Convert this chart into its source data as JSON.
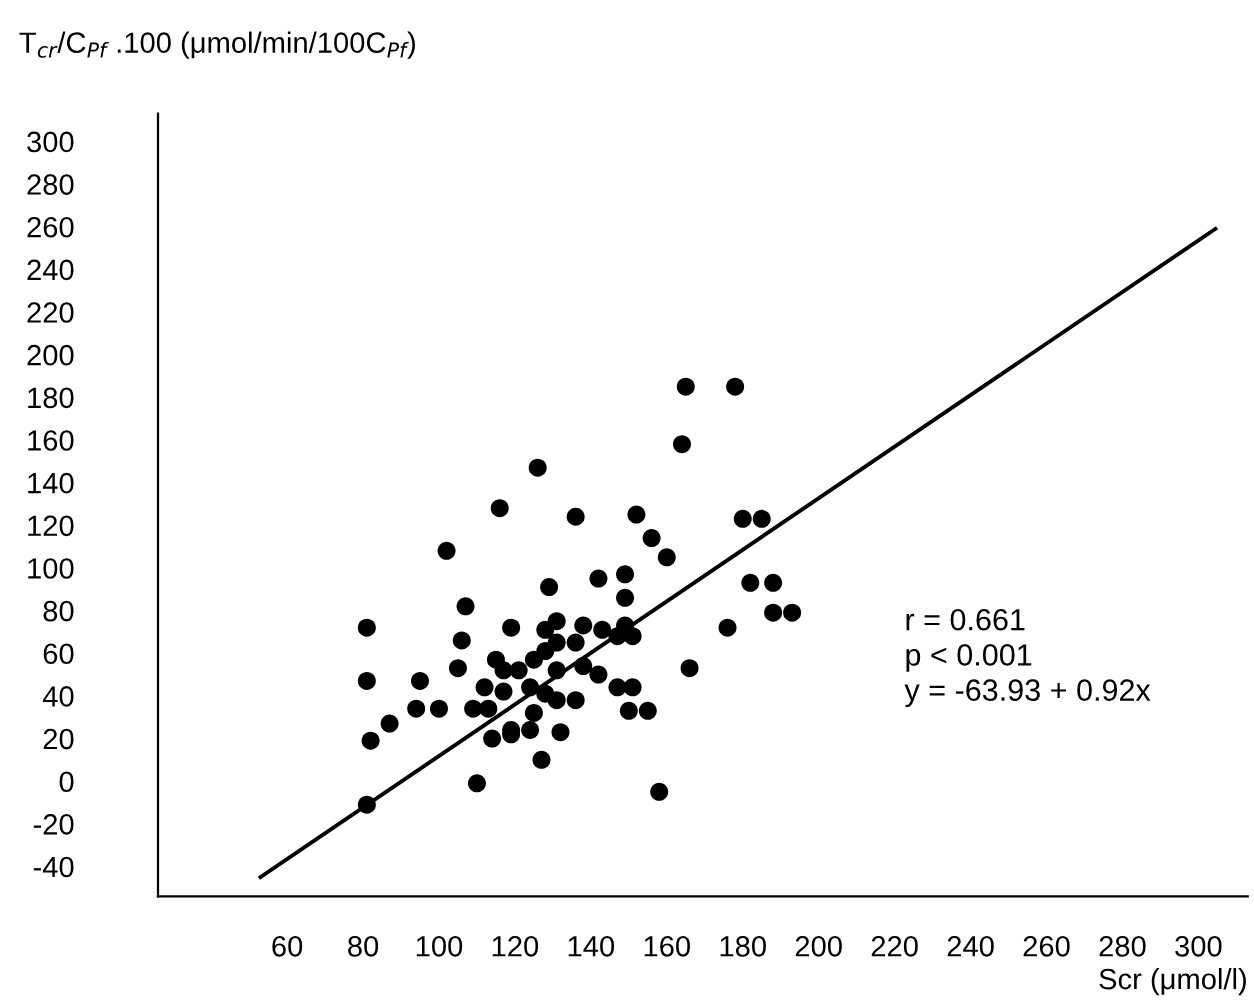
{
  "chart_data": {
    "type": "scatter",
    "ylabel": "T$_{cr}$/C$_{Pf}$ .100 (μmol/min/100C$_{Pf}$)",
    "xlabel": "Scr (μmol/l)",
    "annotations": [
      "r = 0.661",
      "p < 0.001",
      "y = -63.93 + 0.92x"
    ],
    "xlim": [
      26,
      313
    ],
    "ylim": [
      -54,
      313
    ],
    "xticks": [
      60,
      80,
      100,
      120,
      140,
      160,
      180,
      200,
      220,
      240,
      260,
      280,
      300
    ],
    "yticks": [
      {
        "value": -40,
        "label": "-40"
      },
      {
        "value": -20,
        "label": "-20"
      },
      0,
      20,
      40,
      60,
      80,
      100,
      120,
      140,
      160,
      180,
      200,
      220,
      240,
      260,
      280,
      300
    ],
    "grid": false,
    "legend": false,
    "marker": "circle",
    "series": [
      {
        "color": "#000000",
        "x": [
          116,
          102,
          107,
          81,
          106,
          119,
          81,
          95,
          105,
          115,
          117,
          112,
          117,
          94,
          100,
          109,
          113,
          87,
          82,
          114,
          119,
          110,
          81,
          126,
          136,
          152,
          129,
          142,
          149,
          149,
          128,
          131,
          138,
          143,
          149,
          147,
          151,
          131,
          136,
          128,
          125,
          121,
          131,
          138,
          142,
          124,
          128,
          131,
          136,
          147,
          151,
          125,
          150,
          119,
          124,
          132,
          127,
          165,
          178,
          164,
          180,
          185,
          156,
          160,
          182,
          188,
          188,
          193,
          176,
          166,
          155,
          158
        ],
        "values": [
          128,
          108,
          82,
          72,
          66,
          72,
          47,
          47,
          53,
          57,
          52,
          44,
          42,
          34,
          34,
          34,
          34,
          27,
          19,
          20,
          22,
          -1,
          -11,
          147,
          124,
          125,
          91,
          95,
          97,
          86,
          71,
          75,
          73,
          71,
          73,
          68,
          68,
          65,
          65,
          61,
          57,
          52,
          52,
          54,
          50,
          44,
          41,
          38,
          38,
          44,
          44,
          32,
          33,
          24,
          24,
          23,
          10,
          185,
          185,
          158,
          123,
          123,
          114,
          105,
          93,
          93,
          79,
          79,
          72,
          53,
          33,
          -5
        ]
      },
      {
        "type": "line",
        "color": "#000000",
        "marker": "none",
        "line_style": "solid",
        "x": [
          53,
          304.5
        ],
        "values": [
          -45,
          259
        ]
      }
    ]
  }
}
